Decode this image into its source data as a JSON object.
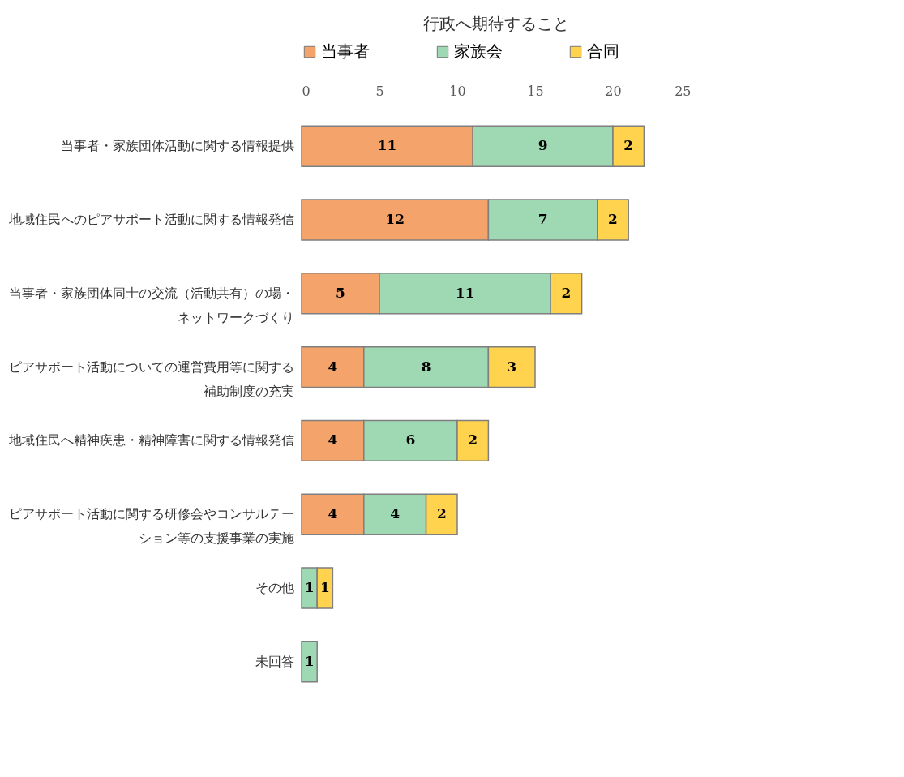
{
  "chart_data": {
    "type": "bar",
    "orientation": "horizontal",
    "stacked": true,
    "title": "行政へ期待すること",
    "categories": [
      "当事者・家族団体活動に関する情報提供",
      "地域住民へのピアサポート活動に関する情報発信",
      "当事者・家族団体同士の交流（活動共有）の場・ネットワークづくり",
      "ピアサポート活動についての運営費用等に関する補助制度の充実",
      "地域住民へ精神疾患・精神障害に関する情報発信",
      "ピアサポート活動に関する研修会やコンサルテーション等の支援事業の実施",
      "その他",
      "未回答"
    ],
    "series": [
      {
        "name": "当事者",
        "color": "#f4a46a",
        "values": [
          11,
          12,
          5,
          4,
          4,
          4,
          null,
          null
        ]
      },
      {
        "name": "家族会",
        "color": "#9ed9b4",
        "values": [
          9,
          7,
          11,
          8,
          6,
          4,
          1,
          1
        ]
      },
      {
        "name": "合同",
        "color": "#ffd34d",
        "values": [
          2,
          2,
          2,
          3,
          2,
          2,
          1,
          null
        ]
      }
    ],
    "xlim": [
      0,
      25
    ],
    "xticks": [
      0,
      5,
      10,
      15,
      20,
      25
    ],
    "data_labels": true,
    "legend": "top",
    "grid": false
  }
}
